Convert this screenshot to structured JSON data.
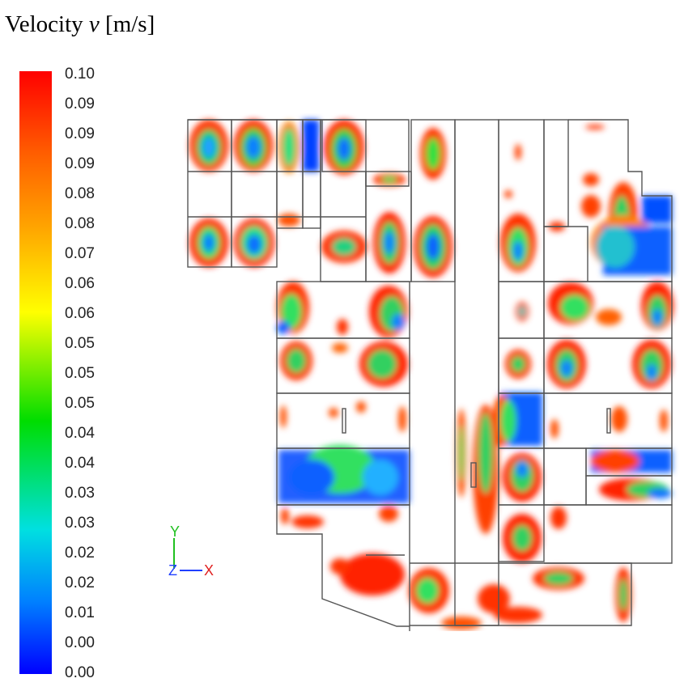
{
  "title": {
    "prefix": "Velocity ",
    "symbol": "v",
    "unit": " [m/s]"
  },
  "legend": {
    "labels": [
      "0.10",
      "0.09",
      "0.09",
      "0.09",
      "0.08",
      "0.08",
      "0.07",
      "0.06",
      "0.06",
      "0.05",
      "0.05",
      "0.05",
      "0.04",
      "0.04",
      "0.03",
      "0.03",
      "0.02",
      "0.02",
      "0.01",
      "0.00",
      "0.00"
    ],
    "colors": {
      "max": "#ff0000",
      "mid": "#ffff00",
      "low": "#00e0e0",
      "min": "#0000ff"
    }
  },
  "axes": {
    "y": "Y",
    "z": "Z",
    "x": "X"
  }
}
